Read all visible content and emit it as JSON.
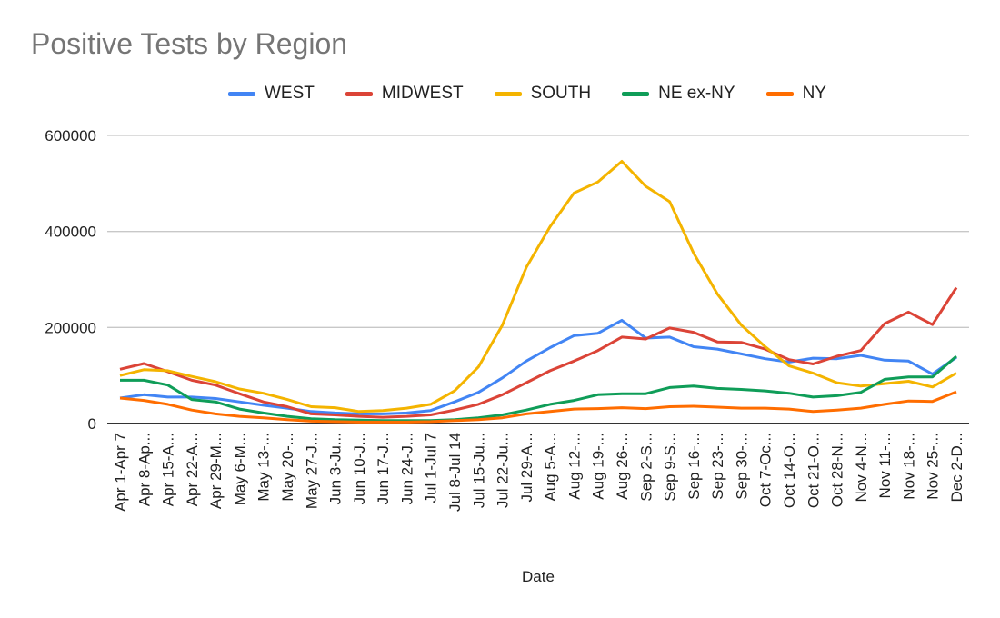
{
  "chart_data": {
    "type": "line",
    "title": "Positive Tests by Region",
    "xlabel": "Date",
    "ylabel": "",
    "ylim": [
      0,
      600000
    ],
    "yticks": [
      "0",
      "200000",
      "400000",
      "600000"
    ],
    "grid": true,
    "legend_position": "top",
    "categories": [
      "Apr 1-Apr 7",
      "Apr 8-Ap...",
      "Apr 15-A...",
      "Apr 22-A...",
      "Apr 29-M...",
      "May 6-M...",
      "May 13-...",
      "May 20-...",
      "May 27-J...",
      "Jun 3-Ju...",
      "Jun 10-J...",
      "Jun 17-J...",
      "Jun 24-J...",
      "Jul 1-Jul 7",
      "Jul 8-Jul 14",
      "Jul 15-Ju...",
      "Jul 22-Ju...",
      "Jul 29-A...",
      "Aug 5-A...",
      "Aug 12-...",
      "Aug 19-...",
      "Aug 26-...",
      "Sep 2-S...",
      "Sep 9-S...",
      "Sep 16-...",
      "Sep 23-...",
      "Sep 30-...",
      "Oct 7-Oc...",
      "Oct 14-O...",
      "Oct 21-O...",
      "Oct 28-N...",
      "Nov 4-N...",
      "Nov 11-...",
      "Nov 18-...",
      "Nov 25-...",
      "Dec 2-D..."
    ],
    "series": [
      {
        "name": "WEST",
        "color": "#4285f4",
        "values": [
          53000,
          60000,
          55000,
          55000,
          52000,
          45000,
          38000,
          32000,
          25000,
          22000,
          20000,
          20000,
          22000,
          27000,
          45000,
          65000,
          95000,
          130000,
          158000,
          183000,
          188000,
          215000,
          178000,
          180000,
          160000,
          155000,
          145000,
          135000,
          128000,
          136000,
          135000,
          142000,
          132000,
          130000,
          103000,
          138000
        ]
      },
      {
        "name": "MIDWEST",
        "color": "#db4437",
        "values": [
          113000,
          125000,
          108000,
          90000,
          80000,
          62000,
          45000,
          35000,
          20000,
          18000,
          15000,
          13000,
          15000,
          18000,
          28000,
          40000,
          60000,
          85000,
          110000,
          130000,
          152000,
          180000,
          176000,
          199000,
          190000,
          170000,
          169000,
          155000,
          133000,
          124000,
          140000,
          152000,
          208000,
          232000,
          206000,
          283000
        ]
      },
      {
        "name": "SOUTH",
        "color": "#f4b400",
        "values": [
          100000,
          112000,
          110000,
          98000,
          87000,
          72000,
          63000,
          50000,
          35000,
          33000,
          25000,
          27000,
          32000,
          40000,
          68000,
          118000,
          205000,
          325000,
          410000,
          480000,
          503000,
          546000,
          494000,
          462000,
          355000,
          270000,
          205000,
          160000,
          120000,
          105000,
          85000,
          78000,
          83000,
          88000,
          76000,
          105000
        ]
      },
      {
        "name": "NE ex-NY",
        "color": "#0f9d58",
        "values": [
          90000,
          90000,
          80000,
          50000,
          45000,
          30000,
          22000,
          15000,
          10000,
          8000,
          7000,
          6000,
          6000,
          6000,
          8000,
          12000,
          18000,
          28000,
          40000,
          48000,
          60000,
          62000,
          62000,
          75000,
          78000,
          73000,
          71000,
          68000,
          63000,
          55000,
          58000,
          65000,
          92000,
          97000,
          97000,
          140000
        ]
      },
      {
        "name": "NY",
        "color": "#ff6d00",
        "values": [
          53000,
          48000,
          40000,
          28000,
          20000,
          15000,
          12000,
          8000,
          5000,
          4000,
          3000,
          3000,
          3000,
          4000,
          6000,
          8000,
          12000,
          20000,
          25000,
          30000,
          31000,
          33000,
          31000,
          35000,
          36000,
          34000,
          32000,
          32000,
          30000,
          25000,
          28000,
          32000,
          40000,
          47000,
          46000,
          66000
        ]
      }
    ]
  }
}
